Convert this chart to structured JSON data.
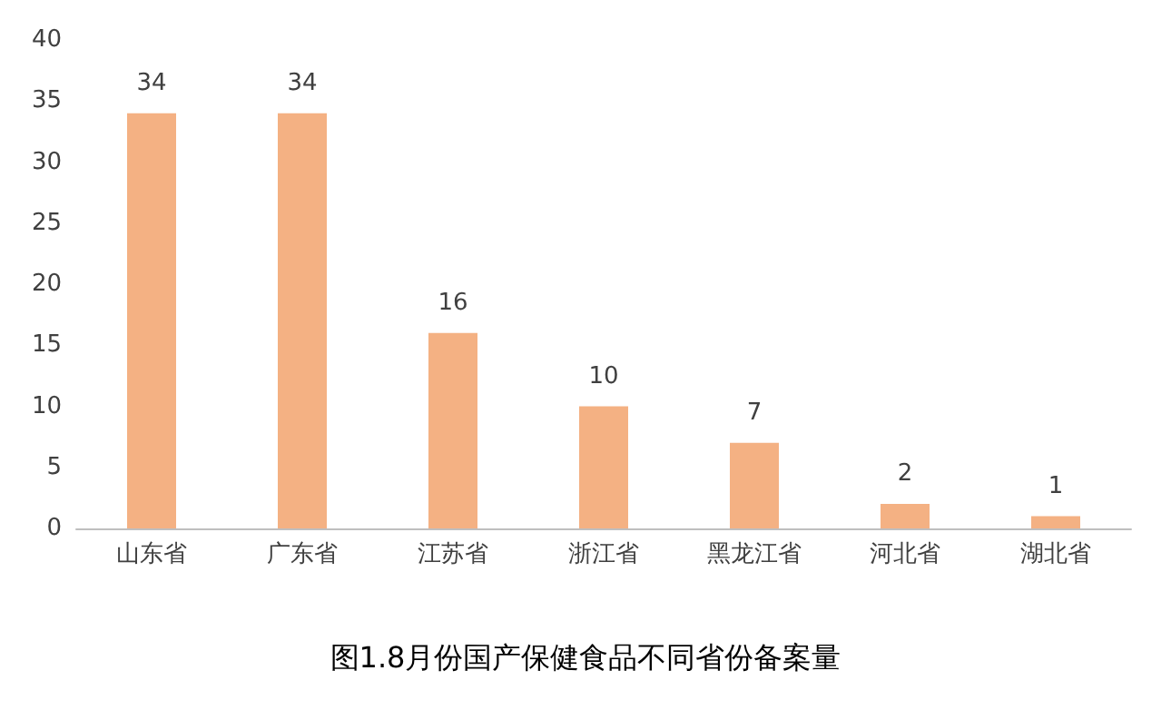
{
  "chart_data": {
    "type": "bar",
    "title": "图1.8月份国产保健食品不同省份备案量",
    "categories": [
      "山东省",
      "广东省",
      "江苏省",
      "浙江省",
      "黑龙江省",
      "河北省",
      "湖北省"
    ],
    "values": [
      34,
      34,
      16,
      10,
      7,
      2,
      1
    ],
    "color": "#f4b183",
    "ylim": [
      0,
      40
    ],
    "yticks": [
      0,
      5,
      10,
      15,
      20,
      25,
      30,
      35,
      40
    ],
    "grid": false,
    "data_labels": true
  }
}
